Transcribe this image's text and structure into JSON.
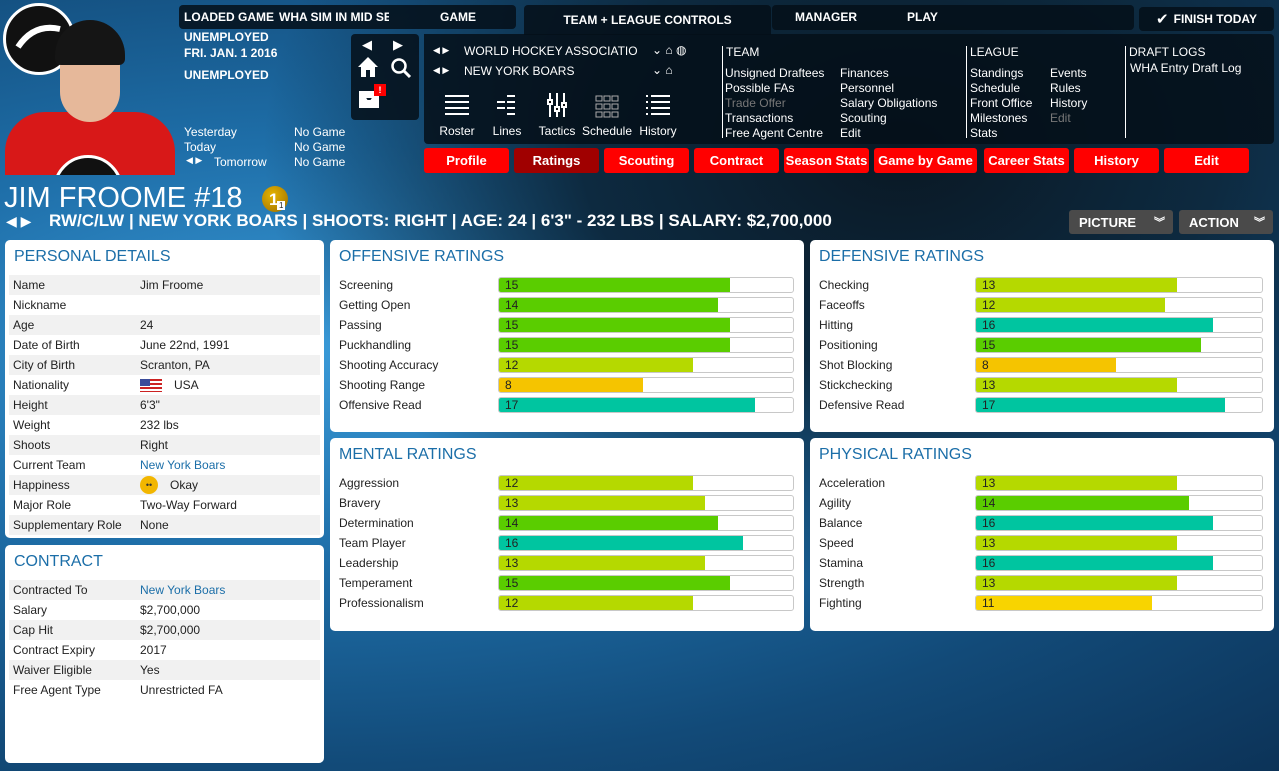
{
  "topbar": {
    "loaded_game_label": "LOADED GAME",
    "loaded_game_value": "WHA SIM IN MID SEASO",
    "game_tab": "GAME",
    "team_league_tab": "TEAM + LEAGUE CONTROLS",
    "manager_tab": "MANAGER",
    "play_tab": "PLAY",
    "finish_today": "FINISH TODAY"
  },
  "status": {
    "employment": "UNEMPLOYED",
    "date": "FRI. JAN. 1 2016",
    "employment2": "UNEMPLOYED",
    "schedule": [
      {
        "day": "Yesterday",
        "game": "No Game"
      },
      {
        "day": "Today",
        "game": "No Game"
      },
      {
        "day": "Tomorrow",
        "game": "No Game"
      }
    ],
    "alert": "!"
  },
  "context": {
    "league": "WORLD HOCKEY ASSOCIATIO",
    "team": "NEW YORK BOARS"
  },
  "toolbar": [
    "Roster",
    "Lines",
    "Tactics",
    "Schedule",
    "History"
  ],
  "menu": {
    "team_title": "TEAM",
    "team_col1": [
      {
        "label": "Unsigned Draftees",
        "enabled": true
      },
      {
        "label": "Possible FAs",
        "enabled": true
      },
      {
        "label": "Trade Offer",
        "enabled": false
      },
      {
        "label": "Transactions",
        "enabled": true
      },
      {
        "label": "Free Agent Centre",
        "enabled": true
      }
    ],
    "team_col2": [
      {
        "label": "Finances",
        "enabled": true
      },
      {
        "label": "Personnel",
        "enabled": true
      },
      {
        "label": "Salary Obligations",
        "enabled": true
      },
      {
        "label": "Scouting",
        "enabled": true
      },
      {
        "label": "Edit",
        "enabled": true
      }
    ],
    "league_title": "LEAGUE",
    "league_col1": [
      {
        "label": "Standings",
        "enabled": true
      },
      {
        "label": "Schedule",
        "enabled": true
      },
      {
        "label": "Front Office",
        "enabled": true
      },
      {
        "label": "Milestones",
        "enabled": true
      },
      {
        "label": "Stats",
        "enabled": true
      }
    ],
    "league_col2": [
      {
        "label": "Events",
        "enabled": true
      },
      {
        "label": "Rules",
        "enabled": true
      },
      {
        "label": "History",
        "enabled": true
      },
      {
        "label": "Edit",
        "enabled": false
      }
    ],
    "draft_title": "DRAFT LOGS",
    "draft_items": [
      {
        "label": "WHA Entry Draft Log",
        "enabled": true
      }
    ]
  },
  "tabs": [
    {
      "label": "Profile"
    },
    {
      "label": "Ratings",
      "active": true
    },
    {
      "label": "Scouting"
    },
    {
      "label": "Contract"
    },
    {
      "label": "Season Stats"
    },
    {
      "label": "Game by Game"
    },
    {
      "label": "Career Stats"
    },
    {
      "label": "History"
    },
    {
      "label": "Edit"
    }
  ],
  "player": {
    "name": "JIM FROOME #18",
    "badge": "1",
    "badge_sub": "1",
    "summary": "RW/C/LW | NEW YORK BOARS | SHOOTS: RIGHT | AGE: 24 | 6'3\" - 232 LBS | SALARY: $2,700,000",
    "picture_btn": "PICTURE",
    "action_btn": "ACTION"
  },
  "personal": {
    "title": "PERSONAL DETAILS",
    "rows": [
      {
        "k": "Name",
        "v": "Jim Froome"
      },
      {
        "k": "Nickname",
        "v": ""
      },
      {
        "k": "Age",
        "v": "24"
      },
      {
        "k": "Date of Birth",
        "v": "June 22nd, 1991"
      },
      {
        "k": "City of Birth",
        "v": "Scranton, PA"
      },
      {
        "k": "Nationality",
        "v": "USA",
        "icon": "flag"
      },
      {
        "k": "Height",
        "v": "6'3\""
      },
      {
        "k": "Weight",
        "v": "232 lbs"
      },
      {
        "k": "Shoots",
        "v": "Right"
      },
      {
        "k": "Current Team",
        "v": "New York Boars",
        "link": true
      },
      {
        "k": "Happiness",
        "v": "Okay",
        "icon": "face"
      },
      {
        "k": "Major Role",
        "v": "Two-Way Forward"
      },
      {
        "k": "Supplementary Role",
        "v": "None"
      }
    ]
  },
  "contract": {
    "title": "CONTRACT",
    "rows": [
      {
        "k": "Contracted To",
        "v": "New York Boars",
        "link": true
      },
      {
        "k": "Salary",
        "v": "$2,700,000"
      },
      {
        "k": "Cap Hit",
        "v": "$2,700,000"
      },
      {
        "k": "Contract Expiry",
        "v": "2017"
      },
      {
        "k": "Waiver Eligible",
        "v": "Yes"
      },
      {
        "k": "Free Agent Type",
        "v": "Unrestricted FA"
      }
    ]
  },
  "ratings_max": 20,
  "ratings": {
    "offensive": {
      "title": "OFFENSIVE RATINGS",
      "items": [
        {
          "k": "Screening",
          "v": 15
        },
        {
          "k": "Getting Open",
          "v": 14
        },
        {
          "k": "Passing",
          "v": 15
        },
        {
          "k": "Puckhandling",
          "v": 15
        },
        {
          "k": "Shooting Accuracy",
          "v": 12
        },
        {
          "k": "Shooting Range",
          "v": 8
        },
        {
          "k": "Offensive Read",
          "v": 17
        }
      ]
    },
    "defensive": {
      "title": "DEFENSIVE RATINGS",
      "items": [
        {
          "k": "Checking",
          "v": 13
        },
        {
          "k": "Faceoffs",
          "v": 12
        },
        {
          "k": "Hitting",
          "v": 16
        },
        {
          "k": "Positioning",
          "v": 15
        },
        {
          "k": "Shot Blocking",
          "v": 8
        },
        {
          "k": "Stickchecking",
          "v": 13
        },
        {
          "k": "Defensive Read",
          "v": 17
        }
      ]
    },
    "mental": {
      "title": "MENTAL RATINGS",
      "items": [
        {
          "k": "Aggression",
          "v": 12
        },
        {
          "k": "Bravery",
          "v": 13
        },
        {
          "k": "Determination",
          "v": 14
        },
        {
          "k": "Team Player",
          "v": 16
        },
        {
          "k": "Leadership",
          "v": 13
        },
        {
          "k": "Temperament",
          "v": 15
        },
        {
          "k": "Professionalism",
          "v": 12
        }
      ]
    },
    "physical": {
      "title": "PHYSICAL RATINGS",
      "items": [
        {
          "k": "Acceleration",
          "v": 13
        },
        {
          "k": "Agility",
          "v": 14
        },
        {
          "k": "Balance",
          "v": 16
        },
        {
          "k": "Speed",
          "v": 13
        },
        {
          "k": "Stamina",
          "v": 16
        },
        {
          "k": "Strength",
          "v": 13
        },
        {
          "k": "Fighting",
          "v": 11
        }
      ]
    }
  },
  "colors": {
    "accent": "#ff0000",
    "active_tab": "#a00000",
    "title_blue": "#1b6ea8",
    "r_orange": "#f5c400",
    "r_yellow": "#f8d400",
    "r_lime": "#b5d900",
    "r_green": "#5acd00",
    "r_teal": "#00c5a0"
  }
}
